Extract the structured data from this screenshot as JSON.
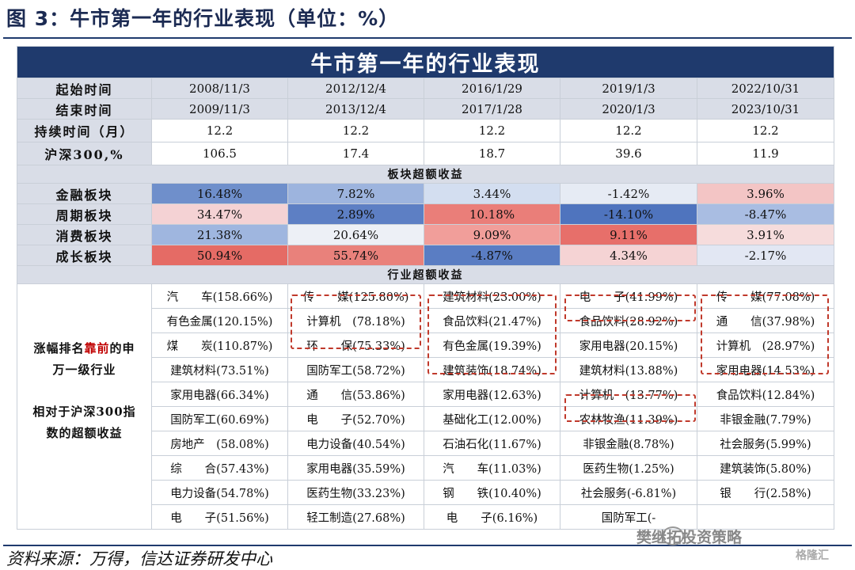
{
  "figure_title": "图 3：牛市第一年的行业表现（单位：%）",
  "table_title": "牛市第一年的行业表现",
  "rows_header": {
    "start_label": "起始时间",
    "end_label": "结束时间",
    "duration_label": "持续时间（月）",
    "index_label": "沪深300,%"
  },
  "periods": [
    {
      "start": "2008/11/3",
      "end": "2009/11/3",
      "duration": "12.2",
      "hs300": "106.5"
    },
    {
      "start": "2012/12/4",
      "end": "2013/12/4",
      "duration": "12.2",
      "hs300": "17.4"
    },
    {
      "start": "2016/1/29",
      "end": "2017/1/28",
      "duration": "12.2",
      "hs300": "18.7"
    },
    {
      "start": "2019/1/3",
      "end": "2020/1/3",
      "duration": "12.2",
      "hs300": "39.6"
    },
    {
      "start": "2022/10/31",
      "end": "2023/10/31",
      "duration": "12.2",
      "hs300": "11.9"
    }
  ],
  "sector_section_title": "板块超额收益",
  "sectors": [
    {
      "label": "金融板块",
      "cells": [
        {
          "v": "16.48%",
          "c": "#6f8fcb"
        },
        {
          "v": "7.82%",
          "c": "#9db4de"
        },
        {
          "v": "3.44%",
          "c": "#d3def0"
        },
        {
          "v": "-1.42%",
          "c": "#e6ebf4"
        },
        {
          "v": "3.96%",
          "c": "#f3c5c5"
        }
      ]
    },
    {
      "label": "周期板块",
      "cells": [
        {
          "v": "34.47%",
          "c": "#f4d2d4"
        },
        {
          "v": "2.89%",
          "c": "#5d7fc4"
        },
        {
          "v": "10.18%",
          "c": "#ea7e79"
        },
        {
          "v": "-14.10%",
          "c": "#4f74be"
        },
        {
          "v": "-8.47%",
          "c": "#a9bde2"
        }
      ]
    },
    {
      "label": "消费板块",
      "cells": [
        {
          "v": "21.38%",
          "c": "#9fb6df"
        },
        {
          "v": "20.64%",
          "c": "#edf0f6"
        },
        {
          "v": "9.09%",
          "c": "#f19e9a"
        },
        {
          "v": "9.11%",
          "c": "#e76f6a"
        },
        {
          "v": "3.91%",
          "c": "#f6dcdc"
        }
      ]
    },
    {
      "label": "成长板块",
      "cells": [
        {
          "v": "50.94%",
          "c": "#e56b65"
        },
        {
          "v": "55.74%",
          "c": "#e9817b"
        },
        {
          "v": "-4.87%",
          "c": "#5a7dc3"
        },
        {
          "v": "4.34%",
          "c": "#f5d3d4"
        },
        {
          "v": "-2.17%",
          "c": "#e2e7f3"
        }
      ]
    }
  ],
  "industry_section_title": "行业超额收益",
  "side_label": {
    "line1_a": "涨幅排名",
    "line1_red": "靠前",
    "line1_b": "的申",
    "line2": "万一级行业",
    "line3": "相对于沪深300指",
    "line4": "数的超额收益"
  },
  "industries": [
    [
      "汽　　车(158.66%)",
      "传　　媒(125.80%)",
      "建筑材料(23.00%)",
      "电　　子(41.99%)",
      "传　　媒(77.08%)"
    ],
    [
      "有色金属(120.15%)",
      "计算机　(78.18%)",
      "食品饮料(21.47%)",
      "食品饮料(28.92%)",
      "通　　信(37.98%)"
    ],
    [
      "煤　　炭(110.87%)",
      "环　　保(75.33%)",
      "有色金属(19.39%)",
      "家用电器(20.15%)",
      "计算机　(28.97%)"
    ],
    [
      "建筑材料(73.51%)",
      "国防军工(58.72%)",
      "建筑装饰(18.74%)",
      "建筑材料(13.88%)",
      "家用电器(14.53%)"
    ],
    [
      "家用电器(66.34%)",
      "通　　信(53.86%)",
      "家用电器(12.63%)",
      "计算机　(13.77%)",
      "食品饮料(12.84%)"
    ],
    [
      "国防军工(60.69%)",
      "电　　子(52.70%)",
      "基础化工(12.00%)",
      "农林牧渔(11.39%)",
      "非银金融(7.79%)"
    ],
    [
      "房地产　(58.08%)",
      "电力设备(40.54%)",
      "石油石化(11.67%)",
      "非银金融(8.78%)",
      "社会服务(5.99%)"
    ],
    [
      "综　　合(57.43%)",
      "家用电器(35.59%)",
      "汽　　车(11.03%)",
      "医药生物(1.25%)",
      "建筑装饰(5.80%)"
    ],
    [
      "电力设备(54.78%)",
      "医药生物(33.23%)",
      "钢　　铁(10.40%)",
      "社会服务(-6.81%)",
      "银　　行(2.58%)"
    ],
    [
      "电　　子(51.56%)",
      "轻工制造(27.68%)",
      "电　　子(6.16%)",
      "国防军工(-",
      ""
    ]
  ],
  "source": "资料来源：万得，信达证券研发中心",
  "watermark": "樊继拓投资策略",
  "watermark_logo": "格隆汇"
}
